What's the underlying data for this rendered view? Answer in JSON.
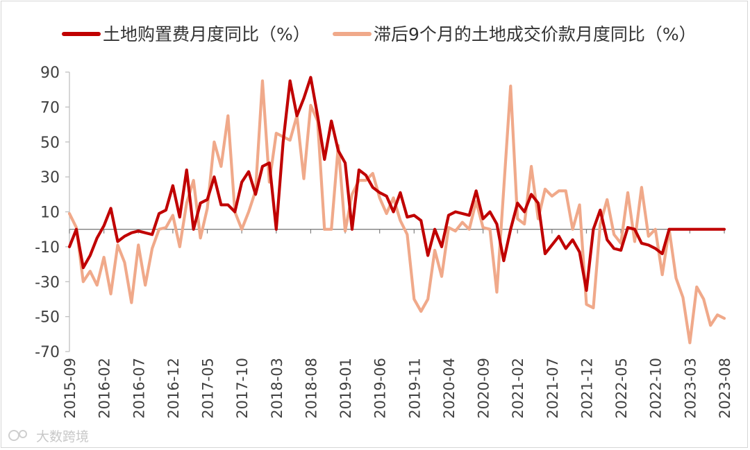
{
  "chart_data": {
    "type": "line",
    "title": "",
    "xlabel": "",
    "ylabel": "",
    "ylim": [
      -70,
      90
    ],
    "yticks": [
      90,
      70,
      50,
      30,
      10,
      -10,
      -30,
      -50,
      -70
    ],
    "ytick_labels": [
      "90",
      "70",
      "50",
      "30",
      "10",
      "-10",
      "-30",
      "-50",
      "-70"
    ],
    "xtick_labels": [
      "2015-09",
      "2016-02",
      "2016-07",
      "2016-12",
      "2017-05",
      "2017-10",
      "2018-03",
      "2018-08",
      "2019-01",
      "2019-06",
      "2019-11",
      "2020-04",
      "2020-09",
      "2021-02",
      "2021-07",
      "2021-12",
      "2022-05",
      "2022-10",
      "2023-03",
      "2023-08"
    ],
    "legend_position": "top",
    "grid": false,
    "series": [
      {
        "name": "土地购置费月度同比（%）",
        "color": "#c00000",
        "values": [
          -10,
          0,
          -22,
          -15,
          -5,
          2,
          12,
          -7,
          -4,
          -2,
          -1,
          -2,
          -3,
          9,
          11,
          25,
          7,
          34,
          0,
          15,
          17,
          30,
          14,
          14,
          10,
          27,
          33,
          20,
          36,
          38,
          0,
          50,
          85,
          65,
          75,
          87,
          65,
          40,
          62,
          45,
          38,
          0,
          34,
          31,
          24,
          21,
          19,
          10,
          21,
          7,
          8,
          5,
          -15,
          0,
          -10,
          8,
          10,
          9,
          8,
          22,
          6,
          10,
          3,
          -18,
          0,
          15,
          10,
          20,
          15,
          -14,
          -9,
          -4,
          -11,
          -6,
          -13,
          -35,
          0,
          11,
          -6,
          -11,
          -12,
          1,
          0,
          -8,
          -9,
          -11,
          -14,
          0,
          0,
          0,
          0,
          0,
          0,
          0,
          0,
          0
        ]
      },
      {
        "name": "滞后9个月的土地成交价款月度同比（%）",
        "color": "#f0a98a",
        "values": [
          9,
          1,
          -30,
          -24,
          -32,
          -16,
          -37,
          -9,
          -19,
          -42,
          -9,
          -32,
          -11,
          0,
          1,
          8,
          -10,
          15,
          28,
          -5,
          12,
          50,
          36,
          65,
          10,
          0,
          10,
          22,
          85,
          27,
          55,
          53,
          51,
          65,
          29,
          71,
          62,
          0,
          0,
          48,
          -1,
          20,
          28,
          28,
          32,
          18,
          9,
          18,
          5,
          -3,
          -40,
          -47,
          -40,
          -12,
          -27,
          1,
          -1,
          4,
          0,
          16,
          1,
          0,
          -36,
          23,
          82,
          6,
          3,
          36,
          6,
          23,
          19,
          22,
          22,
          0,
          14,
          -43,
          -45,
          3,
          17,
          -3,
          -8,
          21,
          -7,
          24,
          -4,
          0,
          -26,
          0,
          -28,
          -39,
          -65,
          -33,
          -40,
          -55,
          -49,
          -51
        ]
      }
    ]
  },
  "watermark": "大数跨境"
}
